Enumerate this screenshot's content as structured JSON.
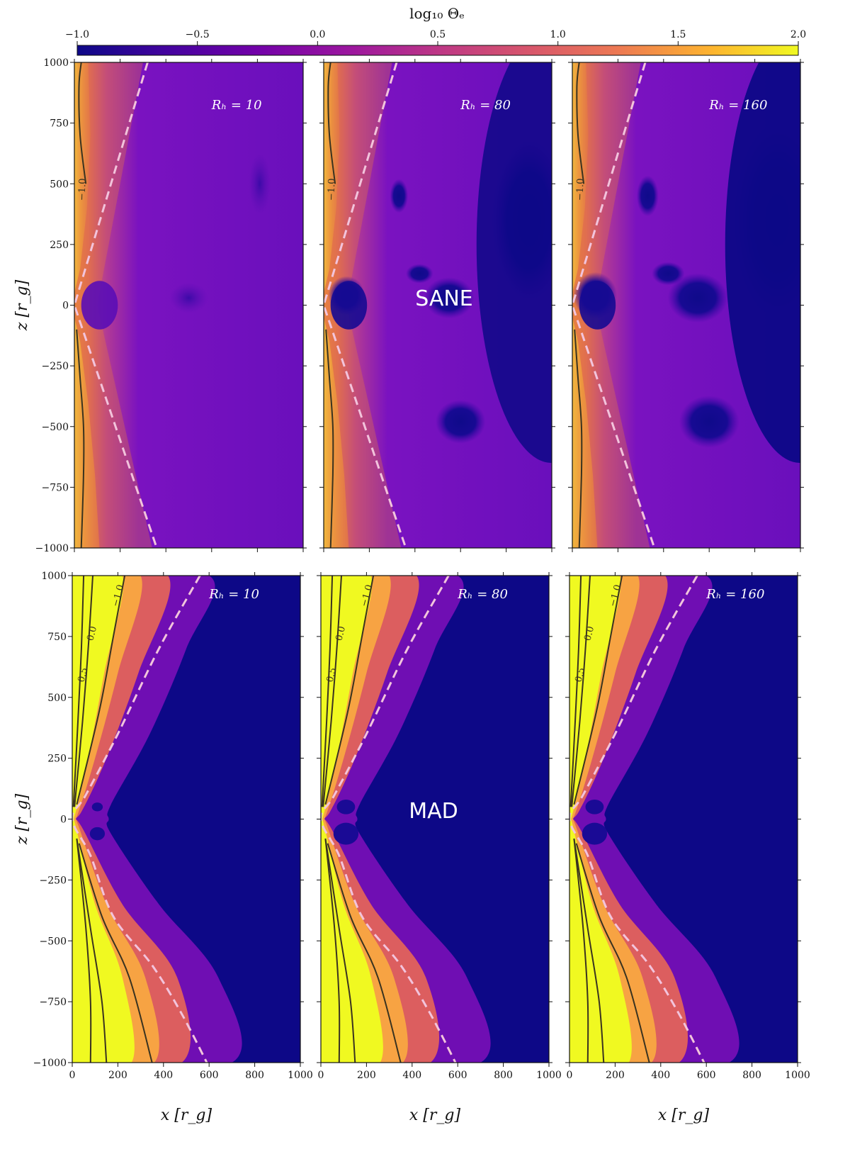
{
  "chart_data": {
    "type": "heatmap",
    "colorbar": {
      "title": "log₁₀ Θₑ",
      "range": [
        -1.0,
        2.0
      ],
      "ticks": [
        "−1.0",
        "−0.5",
        "0.0",
        "0.5",
        "1.0",
        "1.5",
        "2.0"
      ],
      "tick_values": [
        -1.0,
        -0.5,
        0.0,
        0.5,
        1.0,
        1.5,
        2.0
      ],
      "colormap": "plasma"
    },
    "x_axis": {
      "label": "x [r_g]",
      "range": [
        0,
        1000
      ],
      "tick_values": [
        0,
        200,
        400,
        600,
        800,
        1000
      ],
      "ticks": [
        "0",
        "200",
        "400",
        "600",
        "800",
        "1000"
      ]
    },
    "y_axis": {
      "label": "z [r_g]",
      "range": [
        -1000,
        1000
      ],
      "tick_values": [
        1000,
        750,
        500,
        250,
        0,
        -250,
        -500,
        -750,
        -1000
      ],
      "ticks": [
        "1000",
        "750",
        "500",
        "250",
        "0",
        "−250",
        "−500",
        "−750",
        "−1000"
      ]
    },
    "rows": [
      {
        "model": "SANE",
        "panels": [
          {
            "label": "Rₕ = 10",
            "R_h": 10
          },
          {
            "label": "Rₕ = 80",
            "R_h": 80
          },
          {
            "label": "Rₕ = 160",
            "R_h": 160
          }
        ],
        "contour_labels": [
          "−1.0"
        ]
      },
      {
        "model": "MAD",
        "panels": [
          {
            "label": "Rₕ = 10",
            "R_h": 10
          },
          {
            "label": "Rₕ = 80",
            "R_h": 80
          },
          {
            "label": "Rₕ = 160",
            "R_h": 160
          }
        ],
        "contour_labels": [
          "−1.0",
          "0.0",
          "0.5"
        ]
      }
    ],
    "colors": {
      "dark": "#0d0887",
      "purple": "#6a00a8",
      "magenta": "#b12a90",
      "orange": "#e16462",
      "amber": "#fca636",
      "yellow": "#f0f921",
      "dashed_line": "#f2c4dc",
      "contour_line": "#3a3320"
    }
  }
}
